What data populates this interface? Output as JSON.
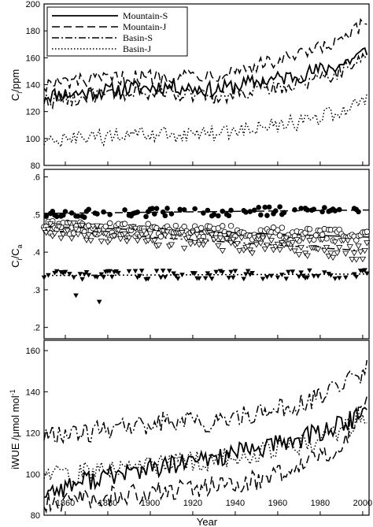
{
  "chart_data": [
    {
      "type": "line",
      "ylabel_main": "C",
      "ylabel_sub": "i",
      "ylabel_unit": "/ppm",
      "ylim": [
        80,
        200
      ],
      "yticks": [
        "80",
        "100",
        "120",
        "140",
        "160",
        "180",
        "200"
      ],
      "xlim": [
        1850,
        2003
      ],
      "legend": {
        "placement": "top-left",
        "entries": [
          "Mountain-S",
          "Mountain-J",
          "Basin-S",
          "Basin-J"
        ]
      },
      "series": [
        {
          "name": "Mountain-S",
          "style": "solid",
          "x": [
            1850,
            1870,
            1890,
            1910,
            1930,
            1950,
            1970,
            1990,
            2002
          ],
          "y": [
            132,
            134,
            137,
            139,
            136,
            142,
            147,
            155,
            165
          ]
        },
        {
          "name": "Mountain-J",
          "style": "dashed",
          "x": [
            1850,
            1870,
            1890,
            1910,
            1930,
            1950,
            1970,
            1990,
            2002
          ],
          "y": [
            140,
            143,
            145,
            147,
            148,
            154,
            161,
            172,
            186
          ]
        },
        {
          "name": "Basin-S",
          "style": "dashdot",
          "x": [
            1850,
            1870,
            1890,
            1910,
            1930,
            1950,
            1970,
            1990,
            2002
          ],
          "y": [
            128,
            131,
            133,
            135,
            130,
            136,
            141,
            150,
            163
          ]
        },
        {
          "name": "Basin-J",
          "style": "dotted",
          "x": [
            1850,
            1870,
            1890,
            1910,
            1930,
            1950,
            1970,
            1990,
            2002
          ],
          "y": [
            97,
            100,
            102,
            103,
            104,
            107,
            112,
            120,
            131
          ]
        }
      ]
    },
    {
      "type": "scatter",
      "ylabel_main": "C",
      "ylabel_sub": "i",
      "ylabel_mid": "/C",
      "ylabel_sub2": "a",
      "ylim": [
        0.17,
        0.62
      ],
      "yticks": [
        ".2",
        ".3",
        ".4",
        ".5",
        ".6"
      ],
      "xlim": [
        1850,
        2003
      ],
      "series": [
        {
          "marker": "filled-circle",
          "trend": [
            [
              1850,
              0.503
            ],
            [
              2003,
              0.512
            ]
          ],
          "mean": 0.507,
          "spread": 0.012
        },
        {
          "marker": "open-circle",
          "trend": [
            [
              1850,
              0.468
            ],
            [
              2003,
              0.44
            ]
          ],
          "mean": 0.455,
          "spread": 0.018
        },
        {
          "marker": "open-triangle",
          "trend": [
            [
              1850,
              0.458
            ],
            [
              2003,
              0.403
            ]
          ],
          "mean": 0.43,
          "spread": 0.025
        },
        {
          "marker": "filled-triangle",
          "trend": [
            [
              1850,
              0.338
            ],
            [
              2003,
              0.342
            ]
          ],
          "mean": 0.34,
          "spread": 0.012
        }
      ]
    },
    {
      "type": "line",
      "ylabel": "iWUE /μmol mol",
      "ylabel_sup": "-1",
      "ylim": [
        80,
        165
      ],
      "yticks": [
        "80",
        "100",
        "120",
        "140",
        "160"
      ],
      "xlim": [
        1850,
        2003
      ],
      "xticks": [
        "1860",
        "1880",
        "1900",
        "1920",
        "1940",
        "1960",
        "1980",
        "2000"
      ],
      "xlabel": "Year",
      "series": [
        {
          "name": "Mountain-S",
          "style": "solid",
          "x": [
            1850,
            1870,
            1890,
            1910,
            1930,
            1950,
            1970,
            1990,
            2002
          ],
          "y": [
            91,
            97,
            101,
            104,
            108,
            112,
            117,
            124,
            130
          ]
        },
        {
          "name": "Mountain-J",
          "style": "dashed",
          "x": [
            1850,
            1870,
            1890,
            1910,
            1930,
            1950,
            1970,
            1990,
            2002
          ],
          "y": [
            86,
            88,
            90,
            92,
            94,
            97,
            102,
            115,
            135
          ]
        },
        {
          "name": "Basin-S",
          "style": "dashdot",
          "x": [
            1850,
            1870,
            1890,
            1910,
            1930,
            1950,
            1970,
            1990,
            2002
          ],
          "y": [
            118,
            120,
            123,
            126,
            125,
            129,
            134,
            142,
            151
          ]
        },
        {
          "name": "Basin-J",
          "style": "dotted",
          "x": [
            1850,
            1870,
            1890,
            1910,
            1930,
            1950,
            1970,
            1990,
            2002
          ],
          "y": [
            99,
            101,
            103,
            105,
            107,
            110,
            114,
            121,
            129
          ]
        }
      ]
    }
  ]
}
